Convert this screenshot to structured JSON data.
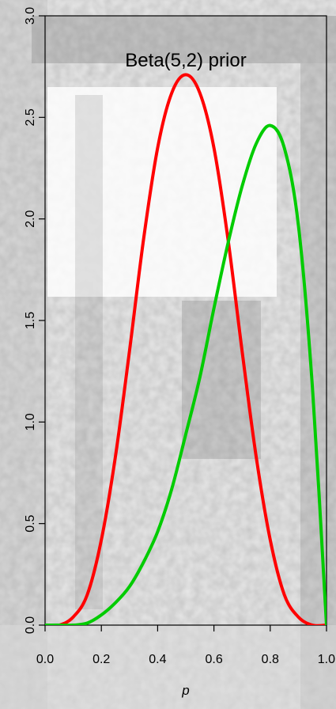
{
  "chart_data": {
    "type": "line",
    "title": "Beta(5,2) prior",
    "xlabel": "p",
    "ylabel": "",
    "xlim": [
      0,
      1
    ],
    "ylim": [
      0,
      3
    ],
    "grid": false,
    "x_ticks": [
      "0.0",
      "0.2",
      "0.4",
      "0.6",
      "0.8",
      "1.0"
    ],
    "y_ticks": [
      "0.0",
      "0.5",
      "1.0",
      "1.5",
      "2.0",
      "2.5",
      "3.0"
    ],
    "background": "grayscale photograph",
    "series": [
      {
        "color": "#ff0000",
        "x": [
          0.0,
          0.05,
          0.1,
          0.15,
          0.2,
          0.25,
          0.3,
          0.35,
          0.4,
          0.45,
          0.5,
          0.55,
          0.6,
          0.65,
          0.7,
          0.75,
          0.8,
          0.85,
          0.9,
          0.95,
          1.0
        ],
        "y": [
          0.0,
          0.0,
          0.04,
          0.15,
          0.42,
          0.83,
          1.35,
          1.9,
          2.35,
          2.62,
          2.71,
          2.62,
          2.35,
          1.9,
          1.35,
          0.83,
          0.42,
          0.15,
          0.04,
          0.0,
          0.0
        ]
      },
      {
        "color": "#00cc00",
        "x": [
          0.0,
          0.05,
          0.1,
          0.15,
          0.2,
          0.25,
          0.3,
          0.35,
          0.4,
          0.45,
          0.5,
          0.55,
          0.6,
          0.65,
          0.7,
          0.75,
          0.8,
          0.85,
          0.9,
          0.95,
          1.0
        ],
        "y": [
          0.0,
          0.0,
          0.0,
          0.01,
          0.05,
          0.11,
          0.19,
          0.31,
          0.46,
          0.67,
          0.94,
          1.22,
          1.56,
          1.88,
          2.16,
          2.37,
          2.46,
          2.35,
          1.97,
          1.17,
          0.0
        ]
      }
    ]
  }
}
